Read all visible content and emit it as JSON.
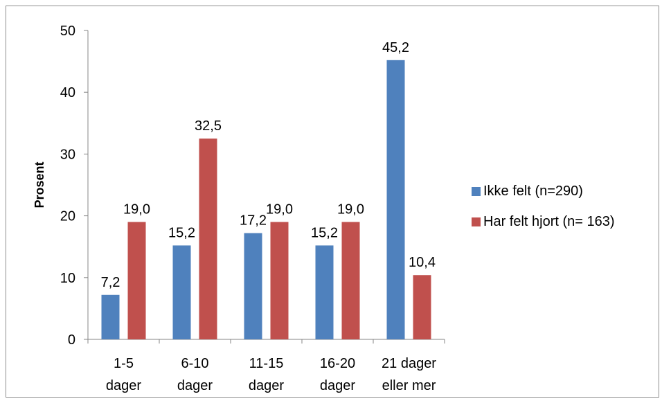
{
  "chart_data": {
    "type": "bar",
    "title": "",
    "xlabel": "",
    "ylabel": "Prosent",
    "ylim": [
      0,
      50
    ],
    "yticks": [
      0,
      10,
      20,
      30,
      40,
      50
    ],
    "categories": [
      [
        "1-5",
        "dager"
      ],
      [
        "6-10",
        "dager"
      ],
      [
        "11-15",
        "dager"
      ],
      [
        "16-20",
        "dager"
      ],
      [
        "21 dager",
        "eller mer"
      ]
    ],
    "series": [
      {
        "name": "Ikke felt (n=290)",
        "color": "#4f81bd",
        "values": [
          7.2,
          15.2,
          17.2,
          15.2,
          45.2
        ],
        "labels": [
          "7,2",
          "15,2",
          "17,2",
          "15,2",
          "45,2"
        ]
      },
      {
        "name": "Har felt hjort (n= 163)",
        "color": "#c0504d",
        "values": [
          19.0,
          32.5,
          19.0,
          19.0,
          10.4
        ],
        "labels": [
          "19,0",
          "32,5",
          "19,0",
          "19,0",
          "10,4"
        ]
      }
    ],
    "grid": false,
    "legend": "right"
  }
}
